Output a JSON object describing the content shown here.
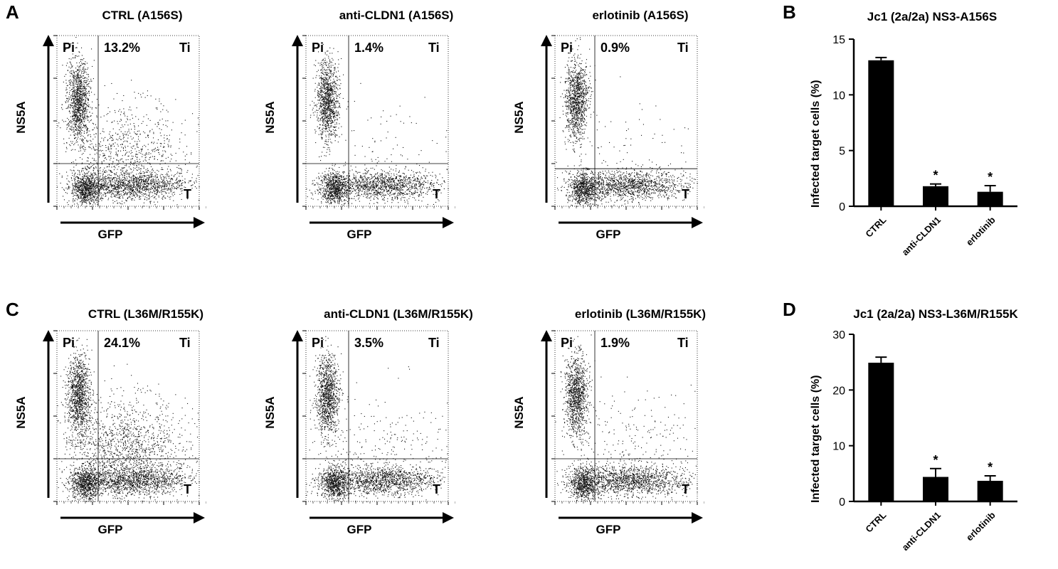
{
  "panels": {
    "A": "A",
    "B": "B",
    "C": "C",
    "D": "D"
  },
  "flow_labels": {
    "y": "NS5A",
    "x": "GFP",
    "pi": "Pi",
    "ti": "Ti",
    "t": "T"
  },
  "flow_plots": [
    {
      "title": "CTRL (A156S)",
      "percent": "13.2%",
      "gate_x": 0.29,
      "gate_y": 0.25
    },
    {
      "title": "anti-CLDN1 (A156S)",
      "percent": "1.4%",
      "gate_x": 0.3,
      "gate_y": 0.25
    },
    {
      "title": "erlotinib (A156S)",
      "percent": "0.9%",
      "gate_x": 0.28,
      "gate_y": 0.22
    },
    {
      "title": "CTRL (L36M/R155K)",
      "percent": "24.1%",
      "gate_x": 0.29,
      "gate_y": 0.25
    },
    {
      "title": "anti-CLDN1 (L36M/R155K)",
      "percent": "3.5%",
      "gate_x": 0.3,
      "gate_y": 0.25
    },
    {
      "title": "erlotinib (L36M/R155K)",
      "percent": "1.9%",
      "gate_x": 0.28,
      "gate_y": 0.25
    }
  ],
  "chart_data": [
    {
      "type": "bar",
      "title": "Jc1 (2a/2a) NS3-A156S",
      "ylabel": "Infected target cells (%)",
      "categories": [
        "CTRL",
        "anti-CLDN1",
        "erlotinib"
      ],
      "values": [
        13.1,
        1.8,
        1.3
      ],
      "errors": [
        0.25,
        0.2,
        0.55
      ],
      "significance": [
        "",
        "*",
        "*"
      ],
      "ylim": [
        0,
        15
      ],
      "yticks": [
        0,
        5,
        10,
        15
      ],
      "bar_color": "#000000"
    },
    {
      "type": "bar",
      "title": "Jc1 (2a/2a) NS3-L36M/R155K",
      "ylabel": "Infected target cells (%)",
      "categories": [
        "CTRL",
        "anti-CLDN1",
        "erlotinib"
      ],
      "values": [
        24.9,
        4.4,
        3.7
      ],
      "errors": [
        1.0,
        1.5,
        0.9
      ],
      "significance": [
        "",
        "*",
        "*"
      ],
      "ylim": [
        0,
        30
      ],
      "yticks": [
        0,
        10,
        20,
        30
      ],
      "bar_color": "#000000"
    }
  ]
}
